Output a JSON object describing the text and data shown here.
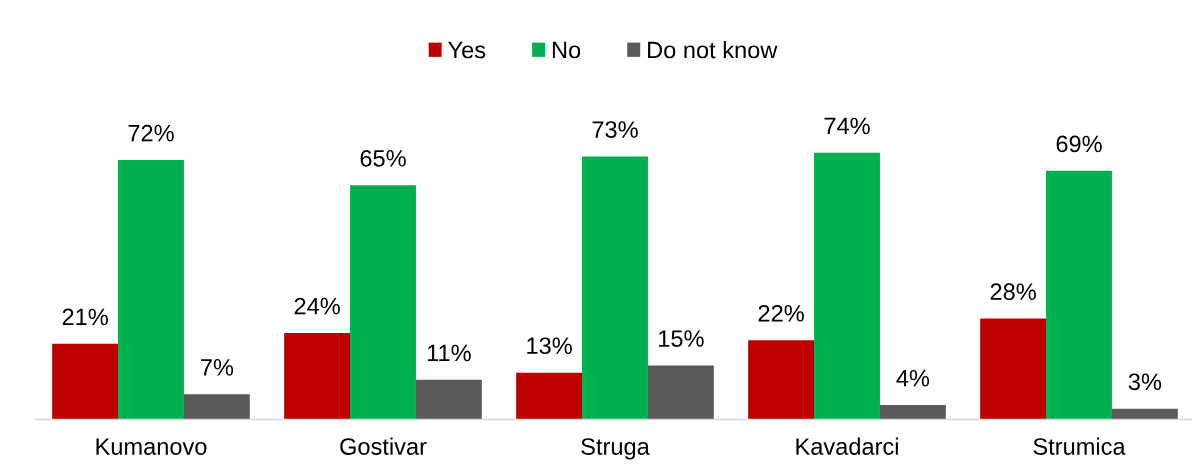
{
  "chart_data": {
    "type": "bar",
    "categories": [
      "Kumanovo",
      "Gostivar",
      "Struga",
      "Kavadarci",
      "Strumica"
    ],
    "series": [
      {
        "name": "Yes",
        "color": "#c00000",
        "values": [
          21,
          24,
          13,
          22,
          28
        ],
        "value_labels": [
          "21%",
          "24%",
          "13%",
          "22%",
          "28%"
        ]
      },
      {
        "name": "No",
        "color": "#00b050",
        "values": [
          72,
          65,
          73,
          74,
          69
        ],
        "value_labels": [
          "72%",
          "65%",
          "73%",
          "74%",
          "69%"
        ]
      },
      {
        "name": "Do not know",
        "color": "#595959",
        "values": [
          7,
          11,
          15,
          4,
          3
        ],
        "value_labels": [
          "7%",
          "11%",
          "15%",
          "4%",
          "3%"
        ]
      }
    ],
    "tick_labels": "x",
    "legend": "top"
  }
}
